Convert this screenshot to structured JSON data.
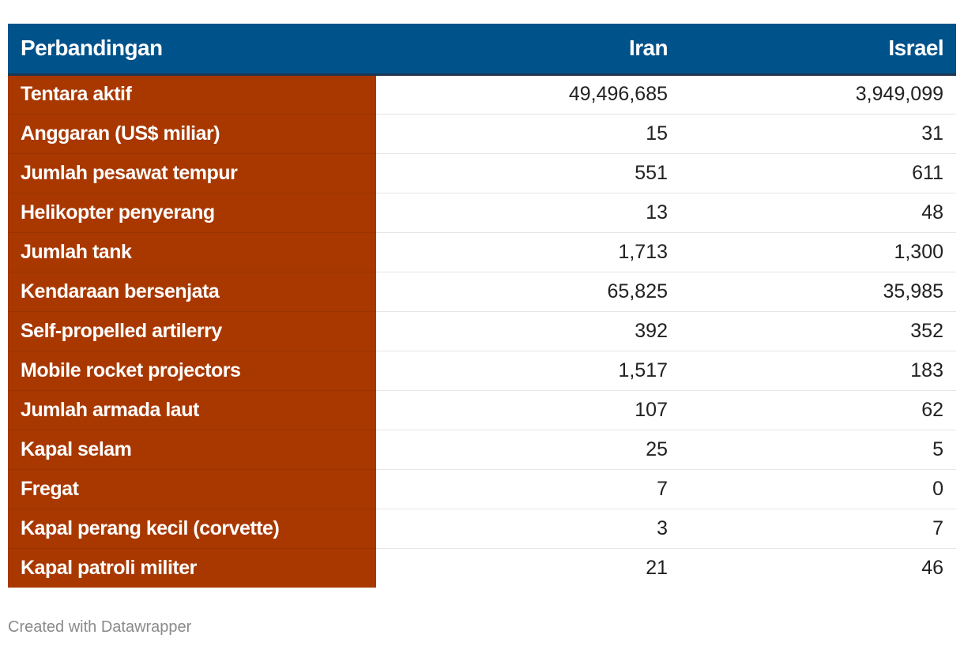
{
  "chart_data": {
    "type": "table",
    "columns": [
      "Perbandingan",
      "Iran",
      "Israel"
    ],
    "rows": [
      {
        "label": "Tentara aktif",
        "iran": "49,496,685",
        "israel": "3,949,099"
      },
      {
        "label": "Anggaran (US$ miliar)",
        "iran": "15",
        "israel": "31"
      },
      {
        "label": "Jumlah pesawat tempur",
        "iran": "551",
        "israel": "611"
      },
      {
        "label": "Helikopter penyerang",
        "iran": "13",
        "israel": "48"
      },
      {
        "label": "Jumlah tank",
        "iran": "1,713",
        "israel": "1,300"
      },
      {
        "label": "Kendaraan bersenjata",
        "iran": "65,825",
        "israel": "35,985"
      },
      {
        "label": "Self-propelled artilerry",
        "iran": "392",
        "israel": "352"
      },
      {
        "label": "Mobile rocket projectors",
        "iran": "1,517",
        "israel": "183"
      },
      {
        "label": "Jumlah armada laut",
        "iran": "107",
        "israel": "62"
      },
      {
        "label": "Kapal selam",
        "iran": "25",
        "israel": "5"
      },
      {
        "label": "Fregat",
        "iran": "7",
        "israel": "0"
      },
      {
        "label": "Kapal perang kecil (corvette)",
        "iran": "3",
        "israel": "7"
      },
      {
        "label": "Kapal patroli militer",
        "iran": "21",
        "israel": "46"
      }
    ],
    "colors": {
      "header_bg": "#00528a",
      "label_column_bg": "#a83800",
      "header_text": "#ffffff",
      "label_text": "#ffffff",
      "value_text": "#222222"
    }
  },
  "footer": {
    "credit": "Created with Datawrapper"
  }
}
